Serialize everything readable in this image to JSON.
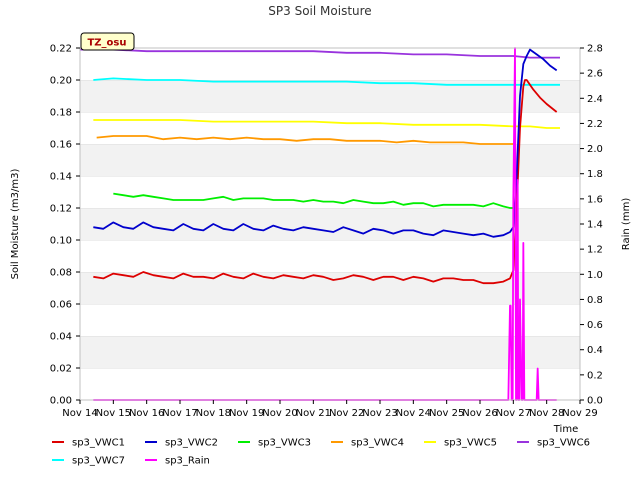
{
  "chart_data": {
    "type": "line",
    "title": "SP3 Soil Moisture",
    "badge": "TZ_osu",
    "xlabel": "Time",
    "ylabel": "Soil Moisture (m3/m3)",
    "y2label": "Rain (mm)",
    "xlim": [
      14,
      29
    ],
    "ylim": [
      0.0,
      0.22
    ],
    "y2lim": [
      0.0,
      2.8
    ],
    "x_ticks": [
      14,
      15,
      16,
      17,
      18,
      19,
      20,
      21,
      22,
      23,
      24,
      25,
      26,
      27,
      28,
      29
    ],
    "x_tick_labels": [
      "Nov 14",
      "Nov 15",
      "Nov 16",
      "Nov 17",
      "Nov 18",
      "Nov 19",
      "Nov 20",
      "Nov 21",
      "Nov 22",
      "Nov 23",
      "Nov 24",
      "Nov 25",
      "Nov 26",
      "Nov 27",
      "Nov 28",
      "Nov 29"
    ],
    "y_ticks": [
      0.0,
      0.02,
      0.04,
      0.06,
      0.08,
      0.1,
      0.12,
      0.14,
      0.16,
      0.18,
      0.2,
      0.22
    ],
    "y_tick_labels": [
      "0.00",
      "0.02",
      "0.04",
      "0.06",
      "0.08",
      "0.10",
      "0.12",
      "0.14",
      "0.16",
      "0.18",
      "0.20",
      "0.22"
    ],
    "y2_ticks": [
      0.0,
      0.2,
      0.4,
      0.6,
      0.8,
      1.0,
      1.2,
      1.4,
      1.6,
      1.8,
      2.0,
      2.2,
      2.4,
      2.6,
      2.8
    ],
    "y2_tick_labels": [
      "0.0",
      "0.2",
      "0.4",
      "0.6",
      "0.8",
      "1.0",
      "1.2",
      "1.4",
      "1.6",
      "1.8",
      "2.0",
      "2.2",
      "2.4",
      "2.6",
      "2.8"
    ],
    "grid": "horizontal bands",
    "legend_position": "bottom",
    "series": [
      {
        "name": "sp3_VWC1",
        "color": "#dd0000",
        "axis": "left",
        "x": [
          14.4,
          14.7,
          15.0,
          15.3,
          15.6,
          15.9,
          16.2,
          16.5,
          16.8,
          17.1,
          17.4,
          17.7,
          18.0,
          18.3,
          18.6,
          18.9,
          19.2,
          19.5,
          19.8,
          20.1,
          20.4,
          20.7,
          21.0,
          21.3,
          21.6,
          21.9,
          22.2,
          22.5,
          22.8,
          23.1,
          23.4,
          23.7,
          24.0,
          24.3,
          24.6,
          24.9,
          25.2,
          25.5,
          25.8,
          26.1,
          26.4,
          26.7,
          26.9,
          27.0,
          27.1,
          27.2,
          27.3,
          27.35,
          27.4,
          27.5,
          27.6,
          27.8,
          28.0,
          28.3
        ],
        "y": [
          0.077,
          0.076,
          0.079,
          0.078,
          0.077,
          0.08,
          0.078,
          0.077,
          0.076,
          0.079,
          0.077,
          0.077,
          0.076,
          0.079,
          0.077,
          0.076,
          0.079,
          0.077,
          0.076,
          0.078,
          0.077,
          0.076,
          0.078,
          0.077,
          0.075,
          0.076,
          0.078,
          0.077,
          0.075,
          0.077,
          0.077,
          0.075,
          0.077,
          0.076,
          0.074,
          0.076,
          0.076,
          0.075,
          0.075,
          0.073,
          0.073,
          0.074,
          0.076,
          0.081,
          0.12,
          0.17,
          0.196,
          0.2,
          0.2,
          0.197,
          0.194,
          0.189,
          0.185,
          0.18
        ]
      },
      {
        "name": "sp3_VWC2",
        "color": "#0000cc",
        "axis": "left",
        "x": [
          14.4,
          14.7,
          15.0,
          15.3,
          15.6,
          15.9,
          16.2,
          16.5,
          16.8,
          17.1,
          17.4,
          17.7,
          18.0,
          18.3,
          18.6,
          18.9,
          19.2,
          19.5,
          19.8,
          20.1,
          20.4,
          20.7,
          21.0,
          21.3,
          21.6,
          21.9,
          22.2,
          22.5,
          22.8,
          23.1,
          23.4,
          23.7,
          24.0,
          24.3,
          24.6,
          24.9,
          25.2,
          25.5,
          25.8,
          26.1,
          26.4,
          26.7,
          26.9,
          27.0,
          27.1,
          27.2,
          27.3,
          27.4,
          27.5,
          27.7,
          27.9,
          28.1,
          28.3
        ],
        "y": [
          0.108,
          0.107,
          0.111,
          0.108,
          0.107,
          0.111,
          0.108,
          0.107,
          0.106,
          0.11,
          0.107,
          0.106,
          0.11,
          0.107,
          0.106,
          0.11,
          0.107,
          0.106,
          0.109,
          0.107,
          0.106,
          0.108,
          0.107,
          0.106,
          0.105,
          0.108,
          0.106,
          0.104,
          0.107,
          0.106,
          0.104,
          0.106,
          0.106,
          0.104,
          0.103,
          0.106,
          0.105,
          0.104,
          0.103,
          0.104,
          0.102,
          0.103,
          0.105,
          0.108,
          0.14,
          0.19,
          0.21,
          0.215,
          0.219,
          0.216,
          0.213,
          0.209,
          0.206
        ]
      },
      {
        "name": "sp3_VWC3",
        "color": "#00ee00",
        "axis": "left",
        "x": [
          15.0,
          15.3,
          15.6,
          15.9,
          16.2,
          16.5,
          16.8,
          17.1,
          17.4,
          17.7,
          18.0,
          18.3,
          18.6,
          18.9,
          19.2,
          19.5,
          19.8,
          20.1,
          20.4,
          20.7,
          21.0,
          21.3,
          21.6,
          21.9,
          22.2,
          22.5,
          22.8,
          23.1,
          23.4,
          23.7,
          24.0,
          24.3,
          24.6,
          24.9,
          25.2,
          25.5,
          25.8,
          26.1,
          26.4,
          26.7,
          26.9,
          27.05
        ],
        "y": [
          0.129,
          0.128,
          0.127,
          0.128,
          0.127,
          0.126,
          0.125,
          0.125,
          0.125,
          0.125,
          0.126,
          0.127,
          0.125,
          0.126,
          0.126,
          0.126,
          0.125,
          0.125,
          0.125,
          0.124,
          0.125,
          0.124,
          0.124,
          0.123,
          0.125,
          0.124,
          0.123,
          0.123,
          0.124,
          0.122,
          0.123,
          0.123,
          0.121,
          0.122,
          0.122,
          0.122,
          0.122,
          0.121,
          0.123,
          0.121,
          0.12,
          0.12
        ]
      },
      {
        "name": "sp3_VWC4",
        "color": "#ff9900",
        "axis": "left",
        "x": [
          14.5,
          15.0,
          15.5,
          16.0,
          16.5,
          17.0,
          17.5,
          18.0,
          18.5,
          19.0,
          19.5,
          20.0,
          20.5,
          21.0,
          21.5,
          22.0,
          22.5,
          23.0,
          23.5,
          24.0,
          24.5,
          25.0,
          25.5,
          26.0,
          26.5,
          27.0,
          27.05
        ],
        "y": [
          0.164,
          0.165,
          0.165,
          0.165,
          0.163,
          0.164,
          0.163,
          0.164,
          0.163,
          0.164,
          0.163,
          0.163,
          0.162,
          0.163,
          0.163,
          0.162,
          0.162,
          0.162,
          0.161,
          0.162,
          0.161,
          0.161,
          0.161,
          0.16,
          0.16,
          0.16,
          0.161
        ]
      },
      {
        "name": "sp3_VWC5",
        "color": "#ffff00",
        "axis": "left",
        "x": [
          14.4,
          15.0,
          16.0,
          17.0,
          18.0,
          19.0,
          20.0,
          21.0,
          22.0,
          23.0,
          24.0,
          25.0,
          26.0,
          27.0,
          27.5,
          28.0,
          28.4
        ],
        "y": [
          0.175,
          0.175,
          0.175,
          0.175,
          0.174,
          0.174,
          0.174,
          0.174,
          0.173,
          0.173,
          0.172,
          0.172,
          0.172,
          0.171,
          0.171,
          0.17,
          0.17
        ]
      },
      {
        "name": "sp3_VWC6",
        "color": "#9933dd",
        "axis": "left",
        "x": [
          14.0,
          15.0,
          16.0,
          17.0,
          18.0,
          19.0,
          20.0,
          21.0,
          22.0,
          23.0,
          24.0,
          25.0,
          26.0,
          27.0,
          27.5,
          28.0,
          28.4
        ],
        "y": [
          0.219,
          0.219,
          0.218,
          0.218,
          0.218,
          0.218,
          0.218,
          0.218,
          0.217,
          0.217,
          0.216,
          0.216,
          0.215,
          0.215,
          0.214,
          0.214,
          0.214
        ]
      },
      {
        "name": "sp3_VWC7",
        "color": "#00ffff",
        "axis": "left",
        "x": [
          14.4,
          15.0,
          16.0,
          17.0,
          18.0,
          19.0,
          20.0,
          21.0,
          22.0,
          23.0,
          24.0,
          25.0,
          26.0,
          27.0,
          27.5,
          28.0,
          28.4
        ],
        "y": [
          0.2,
          0.201,
          0.2,
          0.2,
          0.199,
          0.199,
          0.199,
          0.199,
          0.199,
          0.198,
          0.198,
          0.197,
          0.197,
          0.197,
          0.197,
          0.197,
          0.197
        ]
      },
      {
        "name": "sp3_Rain",
        "color": "#ff00ff",
        "axis": "right",
        "x": [
          14.4,
          26.85,
          26.9,
          26.92,
          26.95,
          26.98,
          27.0,
          27.05,
          27.08,
          27.1,
          27.13,
          27.15,
          27.18,
          27.2,
          27.25,
          27.28,
          27.3,
          27.33,
          27.35,
          27.4,
          27.7,
          27.73,
          27.76,
          28.3
        ],
        "y": [
          0.0,
          0.0,
          0.75,
          0.75,
          0.0,
          0.0,
          1.6,
          2.8,
          0.0,
          0.0,
          1.75,
          0.0,
          0.0,
          0.8,
          0.0,
          0.0,
          1.25,
          0.0,
          0.0,
          0.0,
          0.0,
          0.25,
          0.0,
          0.0
        ]
      }
    ]
  }
}
